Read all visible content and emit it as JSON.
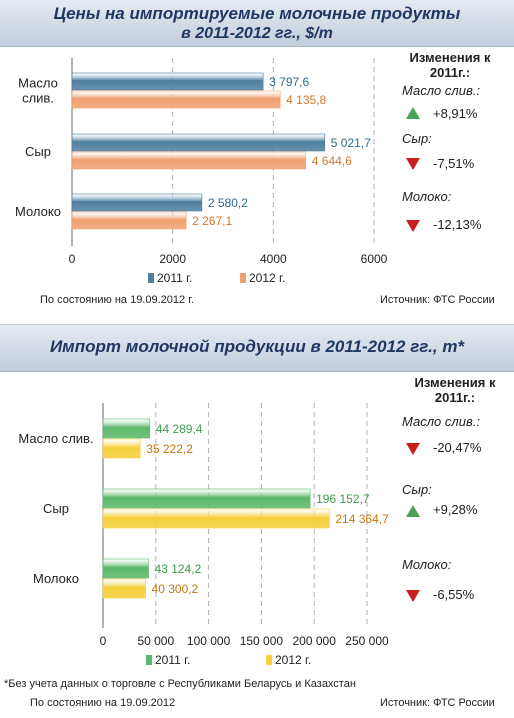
{
  "chart_data": [
    {
      "type": "bar",
      "orientation": "horizontal",
      "title": "Цены на импортируемые молочные продукты",
      "subtitle": "в 2011-2012 гг., $/т",
      "categories": [
        "Масло сливочное",
        "Сыр",
        "Молоко"
      ],
      "category_labels": [
        [
          "Масло",
          "слив."
        ],
        [
          "Сыр"
        ],
        [
          "Молоко"
        ]
      ],
      "series": [
        {
          "name": "2011 г.",
          "values": [
            3797.6,
            5021.7,
            2580.2
          ],
          "labels": [
            "3 797,6",
            "5 021,7",
            "2 580,2"
          ],
          "color": "#4f7f9f",
          "label_color": "#2f6a8e"
        },
        {
          "name": "2012 г.",
          "values": [
            4135.8,
            4644.6,
            2267.1
          ],
          "labels": [
            "4 135,8",
            "4 644,6",
            "2 267,1"
          ],
          "color": "#f0a070",
          "label_color": "#d9762f"
        }
      ],
      "xlim": [
        0,
        6000
      ],
      "xticks": [
        0,
        2000,
        4000,
        6000
      ],
      "xtick_labels": [
        "0",
        "2000",
        "4000",
        "6000"
      ],
      "grid": "vertical dashed",
      "legend_position": "bottom"
    },
    {
      "type": "bar",
      "orientation": "horizontal",
      "title": "Импорт молочной продукции в 2011-2012 гг., т*",
      "categories": [
        "Масло слив.",
        "Сыр",
        "Молоко"
      ],
      "category_labels": [
        [
          "Масло слив."
        ],
        [
          "Сыр"
        ],
        [
          "Молоко"
        ]
      ],
      "series": [
        {
          "name": "2011 г.",
          "values": [
            44289.4,
            196152.7,
            43124.2
          ],
          "labels": [
            "44 289,4",
            "196 152,7",
            "43 124,2"
          ],
          "color": "#5cb86a",
          "label_color": "#3f9a4e"
        },
        {
          "name": "2012 г.",
          "values": [
            35222.2,
            214364.7,
            40300.2
          ],
          "labels": [
            "35 222,2",
            "214 364,7",
            "40 300,2"
          ],
          "color": "#f6cf3a",
          "label_color": "#c07a10"
        }
      ],
      "xlim": [
        0,
        250000
      ],
      "xticks": [
        0,
        50000,
        100000,
        150000,
        200000,
        250000
      ],
      "xtick_labels": [
        "0",
        "50 000",
        "100 000",
        "150 000",
        "200 000",
        "250 000"
      ],
      "grid": "vertical dashed",
      "legend_position": "bottom"
    }
  ],
  "panel1": {
    "title_line1": "Цены на импортируемые молочные продукты",
    "title_line2": "в 2011-2012 гг., $/т",
    "changes_header": "Изменения к 2011г.:",
    "changes": [
      {
        "label": "Масло слив.:",
        "direction": "up",
        "value": "+8,91%"
      },
      {
        "label": "Сыр:",
        "direction": "down",
        "value": "-7,51%"
      },
      {
        "label": "Молоко:",
        "direction": "down",
        "value": "-12,13%"
      }
    ],
    "footer_date": "По состоянию на  19.09.2012 г.",
    "footer_source": "Источник: ФТС России"
  },
  "panel2": {
    "title": "Импорт молочной продукции в 2011-2012 гг., т*",
    "changes_header": "Изменения к 2011г.:",
    "changes": [
      {
        "label": "Масло слив.:",
        "direction": "down",
        "value": "-20,47%"
      },
      {
        "label": "Сыр:",
        "direction": "up",
        "value": "+9,28%"
      },
      {
        "label": "Молоко:",
        "direction": "down",
        "value": "-6,55%"
      }
    ],
    "footnote": "*Без учета данных о торговле с Республиками Беларусь и Казахстан",
    "footer_date": "По состоянию на    19.09.2012",
    "footer_source": "Источник: ФТС России"
  },
  "colors": {
    "up": "#4aa457",
    "down": "#c81e1e",
    "title": "#1f3763"
  }
}
